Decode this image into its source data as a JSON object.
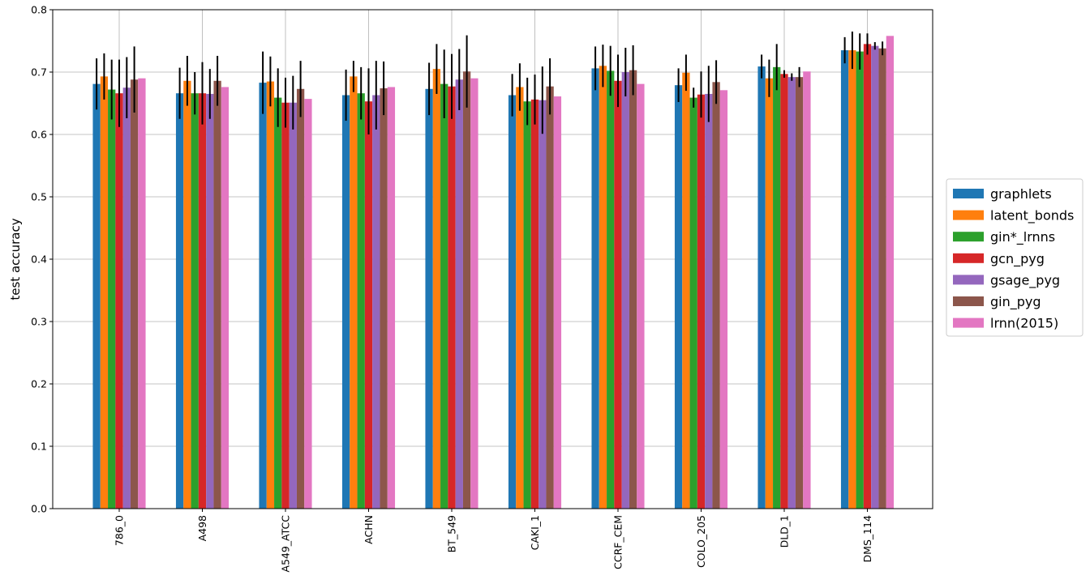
{
  "chart_data": {
    "type": "bar",
    "title": "",
    "xlabel": "",
    "ylabel": "test accuracy",
    "ylim": [
      0,
      0.8
    ],
    "yticks": [
      "0.0",
      "0.1",
      "0.2",
      "0.3",
      "0.4",
      "0.5",
      "0.6",
      "0.7",
      "0.8"
    ],
    "grid": true,
    "legend_position": "right",
    "categories": [
      "786_0",
      "A498",
      "A549_ATCC",
      "ACHN",
      "BT_549",
      "CAKI_1",
      "CCRF_CEM",
      "COLO_205",
      "DLD_1",
      "DMS_114"
    ],
    "series": [
      {
        "name": "graphlets",
        "color": "#1f77b4",
        "values": [
          0.681,
          0.666,
          0.683,
          0.663,
          0.673,
          0.663,
          0.706,
          0.679,
          0.709,
          0.735
        ],
        "errors": [
          0.041,
          0.041,
          0.05,
          0.041,
          0.042,
          0.034,
          0.035,
          0.027,
          0.019,
          0.021
        ]
      },
      {
        "name": "latent_bonds",
        "color": "#ff7f0e",
        "values": [
          0.693,
          0.686,
          0.685,
          0.693,
          0.705,
          0.676,
          0.71,
          0.699,
          0.69,
          0.735
        ],
        "errors": [
          0.037,
          0.04,
          0.04,
          0.025,
          0.04,
          0.038,
          0.034,
          0.029,
          0.03,
          0.03
        ]
      },
      {
        "name": "gin*_lrnns",
        "color": "#2ca02c",
        "values": [
          0.672,
          0.666,
          0.659,
          0.666,
          0.681,
          0.653,
          0.702,
          0.659,
          0.708,
          0.733
        ],
        "errors": [
          0.048,
          0.034,
          0.047,
          0.042,
          0.055,
          0.038,
          0.04,
          0.016,
          0.037,
          0.029
        ]
      },
      {
        "name": "gcn_pyg",
        "color": "#d62728",
        "values": [
          0.666,
          0.666,
          0.651,
          0.653,
          0.677,
          0.656,
          0.686,
          0.664,
          0.697,
          0.745
        ],
        "errors": [
          0.054,
          0.05,
          0.04,
          0.053,
          0.052,
          0.04,
          0.042,
          0.037,
          0.006,
          0.017
        ]
      },
      {
        "name": "gsage_pyg",
        "color": "#9467bd",
        "values": [
          0.675,
          0.665,
          0.651,
          0.663,
          0.688,
          0.655,
          0.7,
          0.665,
          0.692,
          0.742
        ],
        "errors": [
          0.049,
          0.04,
          0.043,
          0.055,
          0.049,
          0.054,
          0.039,
          0.045,
          0.006,
          0.006
        ]
      },
      {
        "name": "gin_pyg",
        "color": "#8c564b",
        "values": [
          0.688,
          0.686,
          0.673,
          0.674,
          0.701,
          0.677,
          0.703,
          0.684,
          0.692,
          0.738
        ],
        "errors": [
          0.053,
          0.04,
          0.045,
          0.043,
          0.058,
          0.045,
          0.04,
          0.035,
          0.016,
          0.011
        ]
      },
      {
        "name": "lrnn(2015)",
        "color": "#e377c2",
        "values": [
          0.69,
          0.676,
          0.657,
          0.676,
          0.69,
          0.661,
          0.681,
          0.671,
          0.701,
          0.758
        ],
        "errors": null
      }
    ]
  }
}
